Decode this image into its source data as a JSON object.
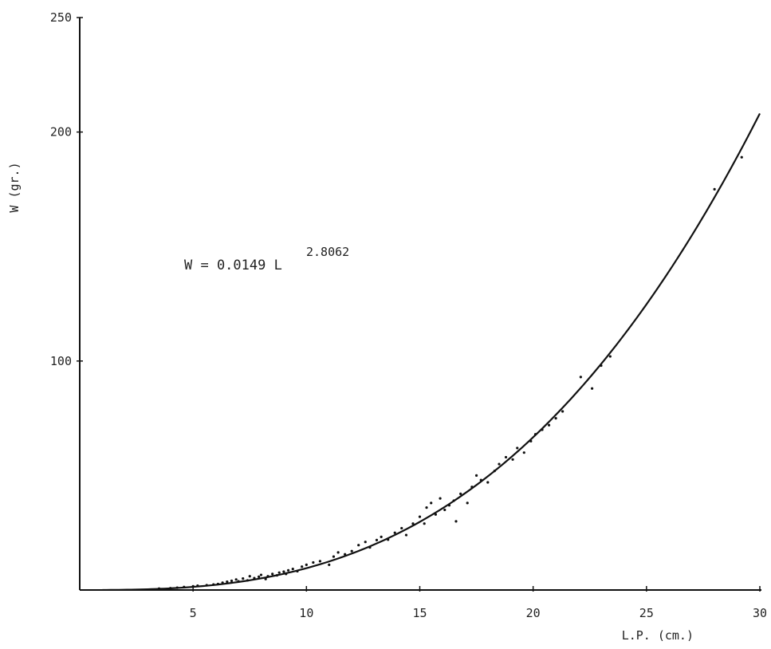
{
  "chart_data": {
    "type": "scatter",
    "xlabel": "L.P. (cm.)",
    "ylabel": "W (gr.)",
    "xlim": [
      0,
      30
    ],
    "ylim": [
      0,
      250
    ],
    "x_ticks": [
      "5",
      "10",
      "15",
      "20",
      "25",
      "30"
    ],
    "y_ticks": [
      "100",
      "200",
      "250"
    ],
    "annotation": {
      "base": "W = 0.0149 L",
      "exponent": "2.8062"
    },
    "fit": {
      "a": 0.0149,
      "b": 2.8062,
      "x_range": [
        1,
        30
      ]
    },
    "series": [
      {
        "points": [
          [
            3.5,
            0.6
          ],
          [
            4.0,
            0.8
          ],
          [
            4.3,
            1.0
          ],
          [
            4.6,
            1.3
          ],
          [
            5.0,
            1.6
          ],
          [
            5.2,
            1.9
          ],
          [
            5.6,
            2.1
          ],
          [
            5.9,
            2.4
          ],
          [
            6.1,
            2.6
          ],
          [
            6.3,
            3.2
          ],
          [
            6.5,
            3.6
          ],
          [
            6.7,
            4.0
          ],
          [
            6.9,
            4.6
          ],
          [
            7.0,
            3.8
          ],
          [
            7.2,
            5.0
          ],
          [
            7.4,
            4.2
          ],
          [
            7.5,
            6.0
          ],
          [
            7.7,
            5.2
          ],
          [
            7.9,
            5.8
          ],
          [
            8.0,
            6.6
          ],
          [
            8.2,
            4.8
          ],
          [
            8.3,
            6.0
          ],
          [
            8.5,
            7.0
          ],
          [
            8.7,
            6.4
          ],
          [
            8.8,
            7.6
          ],
          [
            9.0,
            8.0
          ],
          [
            9.1,
            7.0
          ],
          [
            9.2,
            8.6
          ],
          [
            9.4,
            9.2
          ],
          [
            9.6,
            8.2
          ],
          [
            9.8,
            10.2
          ],
          [
            10.0,
            11.0
          ],
          [
            10.3,
            12.0
          ],
          [
            10.6,
            12.6
          ],
          [
            11.0,
            11.0
          ],
          [
            11.2,
            14.6
          ],
          [
            11.4,
            16.4
          ],
          [
            11.7,
            15.6
          ],
          [
            12.0,
            17.0
          ],
          [
            12.3,
            19.6
          ],
          [
            12.6,
            21.0
          ],
          [
            12.8,
            18.6
          ],
          [
            13.1,
            21.8
          ],
          [
            13.3,
            23.2
          ],
          [
            13.6,
            22.0
          ],
          [
            13.9,
            25.0
          ],
          [
            14.2,
            27.0
          ],
          [
            14.4,
            24.0
          ],
          [
            14.7,
            29.0
          ],
          [
            15.0,
            32.0
          ],
          [
            15.2,
            29.0
          ],
          [
            15.3,
            36.0
          ],
          [
            15.5,
            38.0
          ],
          [
            15.7,
            33.0
          ],
          [
            15.9,
            40.0
          ],
          [
            16.1,
            35.0
          ],
          [
            16.3,
            37.0
          ],
          [
            16.5,
            39.0
          ],
          [
            16.6,
            30.0
          ],
          [
            16.8,
            42.0
          ],
          [
            17.1,
            38.0
          ],
          [
            17.3,
            45.0
          ],
          [
            17.5,
            50.0
          ],
          [
            17.7,
            48.0
          ],
          [
            18.0,
            47.0
          ],
          [
            18.3,
            52.0
          ],
          [
            18.5,
            55.0
          ],
          [
            18.8,
            58.0
          ],
          [
            19.1,
            57.0
          ],
          [
            19.3,
            62.0
          ],
          [
            19.6,
            60.0
          ],
          [
            19.9,
            65.0
          ],
          [
            20.1,
            68.0
          ],
          [
            20.4,
            70.0
          ],
          [
            20.7,
            72.0
          ],
          [
            21.0,
            75.0
          ],
          [
            21.3,
            78.0
          ],
          [
            22.1,
            93.0
          ],
          [
            22.6,
            88.0
          ],
          [
            23.0,
            98.0
          ],
          [
            23.4,
            102.0
          ],
          [
            28.0,
            175.0
          ],
          [
            29.2,
            189.0
          ]
        ]
      }
    ]
  }
}
